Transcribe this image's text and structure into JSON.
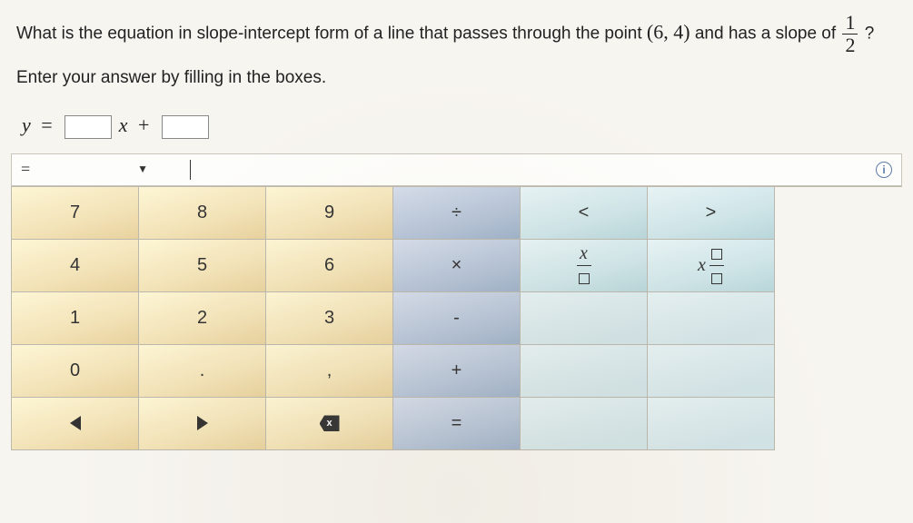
{
  "question": {
    "prefix": "What is the equation in slope-intercept form of a line that passes through the point ",
    "point": "(6,  4)",
    "mid": " and has a slope of ",
    "frac_num": "1",
    "frac_den": "2",
    "suffix": " ?"
  },
  "instruction": "Enter your answer by filling in the boxes.",
  "equation": {
    "y": "y",
    "eq": "=",
    "x": "x",
    "plus": "+"
  },
  "displaybar": {
    "eq_sign": "=",
    "dropdown_glyph": "▼",
    "info_glyph": "i"
  },
  "keypad": {
    "layout": [
      [
        "7",
        "8",
        "9",
        "÷",
        "<",
        ">"
      ],
      [
        "4",
        "5",
        "6",
        "×",
        "xfrac",
        "xmfrac"
      ],
      [
        "1",
        "2",
        "3",
        "-",
        "",
        ""
      ],
      [
        "0",
        ".",
        ",",
        "+",
        "",
        ""
      ],
      [
        "◀",
        "▶",
        "⌫",
        "=",
        "",
        ""
      ]
    ],
    "classes": [
      [
        "num",
        "num",
        "num",
        "opkey",
        "varkey",
        "varkey"
      ],
      [
        "num",
        "num",
        "num",
        "opkey",
        "varkey",
        "varkey"
      ],
      [
        "num",
        "num",
        "num",
        "opkey",
        "blankkey",
        "blankkey"
      ],
      [
        "num",
        "num",
        "num",
        "opkey",
        "blankkey",
        "blankkey"
      ],
      [
        "num",
        "num",
        "num",
        "opkey",
        "blankkey",
        "blankkey"
      ]
    ],
    "labels": {
      "k7": "7",
      "k8": "8",
      "k9": "9",
      "kdiv": "÷",
      "klt": "<",
      "kgt": ">",
      "k4": "4",
      "k5": "5",
      "k6": "6",
      "kmul": "×",
      "k1": "1",
      "k2": "2",
      "k3": "3",
      "ksub": "-",
      "k0": "0",
      "kdot": ".",
      "kcom": ",",
      "kadd": "+",
      "keq": "="
    },
    "var_x": "x",
    "colors": {
      "num_bg": "#f3e3b8",
      "op_bg": "#b7c5d8",
      "var_bg": "#cfe5e8",
      "blank_bg": "#d2e3e6",
      "border": "#bcb8ad"
    }
  }
}
